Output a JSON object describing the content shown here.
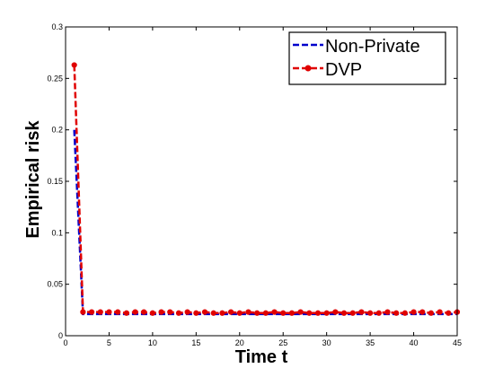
{
  "chart_data": {
    "type": "line",
    "title": "",
    "xlabel": "Time t",
    "ylabel": "Empirical risk",
    "xlim": [
      0,
      45
    ],
    "ylim": [
      0,
      0.3
    ],
    "xticks": [
      0,
      5,
      10,
      15,
      20,
      25,
      30,
      35,
      40,
      45
    ],
    "yticks": [
      0,
      0.05,
      0.1,
      0.15,
      0.2,
      0.25,
      0.3
    ],
    "xtick_labels": [
      "0",
      "5",
      "10",
      "15",
      "20",
      "25",
      "30",
      "35",
      "40",
      "45"
    ],
    "ytick_labels": [
      "0",
      "0.05",
      "0.1",
      "0.15",
      "0.2",
      "0.25",
      "0.3"
    ],
    "grid": false,
    "legend_position": "top-right",
    "x": [
      1,
      2,
      3,
      4,
      5,
      6,
      7,
      8,
      9,
      10,
      11,
      12,
      13,
      14,
      15,
      16,
      17,
      18,
      19,
      20,
      21,
      22,
      23,
      24,
      25,
      26,
      27,
      28,
      29,
      30,
      31,
      32,
      33,
      34,
      35,
      36,
      37,
      38,
      39,
      40,
      41,
      42,
      43,
      44,
      45
    ],
    "series": [
      {
        "name": "Non-Private",
        "color": "#0000cc",
        "style": "dashed",
        "marker": "none",
        "values": [
          0.2,
          0.021,
          0.021,
          0.021,
          0.021,
          0.021,
          0.021,
          0.021,
          0.021,
          0.021,
          0.021,
          0.021,
          0.021,
          0.021,
          0.021,
          0.021,
          0.021,
          0.021,
          0.021,
          0.021,
          0.021,
          0.021,
          0.021,
          0.021,
          0.021,
          0.021,
          0.021,
          0.021,
          0.021,
          0.021,
          0.021,
          0.021,
          0.021,
          0.021,
          0.021,
          0.021,
          0.021,
          0.021,
          0.021,
          0.021,
          0.021,
          0.021,
          0.021,
          0.021,
          0.021
        ]
      },
      {
        "name": "DVP",
        "color": "#e00000",
        "style": "dashed",
        "marker": "circle",
        "values": [
          0.263,
          0.023,
          0.023,
          0.023,
          0.023,
          0.023,
          0.022,
          0.023,
          0.023,
          0.022,
          0.023,
          0.023,
          0.022,
          0.023,
          0.022,
          0.023,
          0.022,
          0.022,
          0.023,
          0.022,
          0.023,
          0.022,
          0.022,
          0.023,
          0.022,
          0.022,
          0.023,
          0.022,
          0.022,
          0.022,
          0.023,
          0.022,
          0.022,
          0.023,
          0.022,
          0.022,
          0.023,
          0.022,
          0.022,
          0.023,
          0.023,
          0.022,
          0.023,
          0.022,
          0.023
        ]
      }
    ]
  }
}
